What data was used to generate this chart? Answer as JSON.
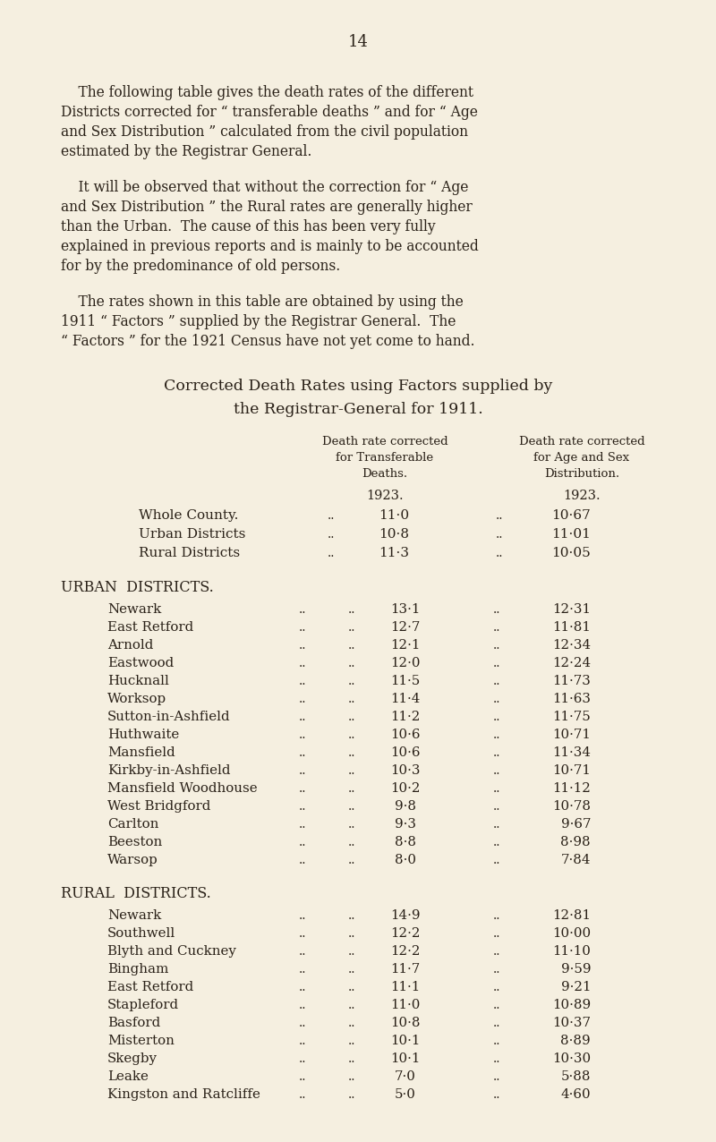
{
  "page_number": "14",
  "bg_color": "#f5efe0",
  "text_color": "#2a2118",
  "fig_width": 8.0,
  "fig_height": 12.76,
  "dpi": 100,
  "paragraph1_lines": [
    "    The following table gives the death rates of the different",
    "Districts corrected for “ transferable deaths ” and for “ Age",
    "and Sex Distribution ” calculated from the civil population",
    "estimated by the Registrar General."
  ],
  "paragraph2_lines": [
    "    It will be observed that without the correction for “ Age",
    "and Sex Distribution ” the Rural rates are generally higher",
    "than the Urban.  The cause of this has been very fully",
    "explained in previous reports and is mainly to be accounted",
    "for by the predominance of old persons."
  ],
  "paragraph3_lines": [
    "    The rates shown in this table are obtained by using the",
    "1911 “ Factors ” supplied by the Registrar General.  The",
    "“ Factors ” for the 1921 Census have not yet come to hand."
  ],
  "heading1": "Corrected Death Rates using Factors supplied by",
  "heading2": "the Registrar-General for 1911.",
  "col_header1_lines": [
    "Death rate corrected",
    "for Transferable",
    "Deaths."
  ],
  "col_header2_lines": [
    "Death rate corrected",
    "for Age and Sex",
    "Distribution."
  ],
  "year_label": "1923.",
  "summary_rows": [
    {
      "label": "Whole County.",
      "style": "smallcaps",
      "val1": "11·0",
      "val2": "10·67"
    },
    {
      "label": "Urban Districts",
      "style": "smallcaps",
      "val1": "10·8",
      "val2": "11·01"
    },
    {
      "label": "Rural Districts",
      "style": "smallcaps",
      "val1": "11·3",
      "val2": "10·05"
    }
  ],
  "urban_header": "URBAN  DISTRICTS.",
  "urban_rows": [
    {
      "label": "Newark",
      "val1": "13·1",
      "val2": "12·31"
    },
    {
      "label": "East Retford",
      "val1": "12·7",
      "val2": "11·81"
    },
    {
      "label": "Arnold",
      "val1": "12·1",
      "val2": "12·34"
    },
    {
      "label": "Eastwood",
      "val1": "12·0",
      "val2": "12·24"
    },
    {
      "label": "Hucknall",
      "val1": "11·5",
      "val2": "11·73"
    },
    {
      "label": "Worksop",
      "val1": "11·4",
      "val2": "11·63"
    },
    {
      "label": "Sutton-in-Ashfield",
      "val1": "11·2",
      "val2": "11·75"
    },
    {
      "label": "Huthwaite",
      "val1": "10·6",
      "val2": "10·71"
    },
    {
      "label": "Mansfield",
      "val1": "10·6",
      "val2": "11·34"
    },
    {
      "label": "Kirkby-in-Ashfield",
      "val1": "10·3",
      "val2": "10·71"
    },
    {
      "label": "Mansfield Woodhouse",
      "val1": "10·2",
      "val2": "11·12"
    },
    {
      "label": "West Bridgford",
      "val1": "9·8",
      "val2": "10·78"
    },
    {
      "label": "Carlton",
      "val1": "9·3",
      "val2": "9·67"
    },
    {
      "label": "Beeston",
      "val1": "8·8",
      "val2": "8·98"
    },
    {
      "label": "Warsop",
      "val1": "8·0",
      "val2": "7·84"
    }
  ],
  "rural_header": "RURAL  DISTRICTS.",
  "rural_rows": [
    {
      "label": "Newark",
      "val1": "14·9",
      "val2": "12·81"
    },
    {
      "label": "Southwell",
      "val1": "12·2",
      "val2": "10·00"
    },
    {
      "label": "Blyth and Cuckney",
      "val1": "12·2",
      "val2": "11·10"
    },
    {
      "label": "Bingham",
      "val1": "11·7",
      "val2": "9·59"
    },
    {
      "label": "East Retford",
      "val1": "11·1",
      "val2": "9·21"
    },
    {
      "label": "Stapleford",
      "val1": "11·0",
      "val2": "10·89"
    },
    {
      "label": "Basford",
      "val1": "10·8",
      "val2": "10·37"
    },
    {
      "label": "Misterton",
      "val1": "10·1",
      "val2": "8·89"
    },
    {
      "label": "Skegby",
      "val1": "10·1",
      "val2": "10·30"
    },
    {
      "label": "Leake",
      "val1": "7·0",
      "val2": "5·88"
    },
    {
      "label": "Kingston and Ratcliffe",
      "val1": "5·0",
      "val2": "4·60"
    }
  ]
}
